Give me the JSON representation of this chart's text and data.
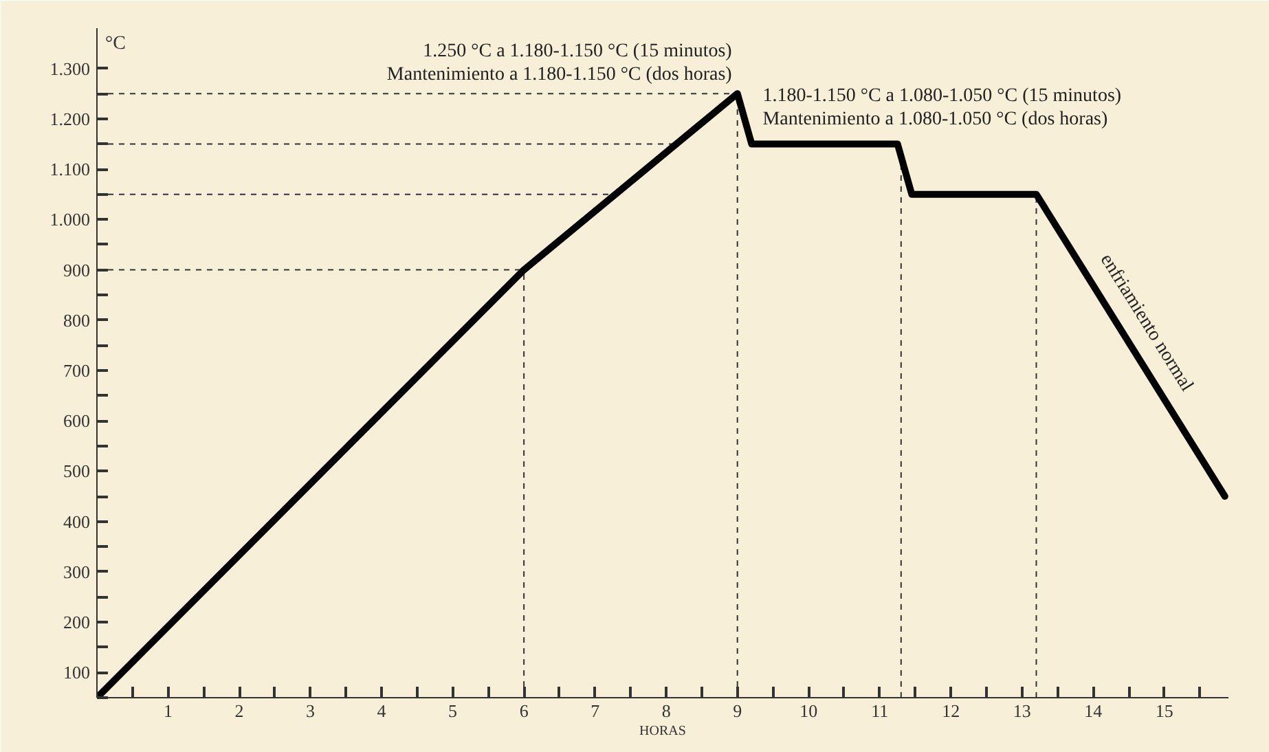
{
  "chart_data": {
    "type": "line",
    "xlabel": "HORAS",
    "ylabel": "°C",
    "x": [
      0,
      6,
      9,
      9.2,
      11.25,
      11.45,
      13.2,
      15.85
    ],
    "series": [
      {
        "color": "#000000",
        "values": [
          50,
          900,
          1250,
          1150,
          1150,
          1050,
          1050,
          450
        ]
      }
    ],
    "xlim": [
      0,
      15.9
    ],
    "ylim": [
      50,
      1380
    ],
    "xticks": [
      1,
      2,
      3,
      4,
      5,
      6,
      7,
      8,
      9,
      10,
      11,
      12,
      13,
      14,
      15
    ],
    "yticks": [
      {
        "value": 100,
        "label": "100"
      },
      {
        "value": 200,
        "label": "200"
      },
      {
        "value": 300,
        "label": "300"
      },
      {
        "value": 400,
        "label": "400"
      },
      {
        "value": 500,
        "label": "500"
      },
      {
        "value": 600,
        "label": "600"
      },
      {
        "value": 700,
        "label": "700"
      },
      {
        "value": 800,
        "label": "800"
      },
      {
        "value": 900,
        "label": "900"
      },
      {
        "value": 1000,
        "label": "1.000"
      },
      {
        "value": 1100,
        "label": "1.100"
      },
      {
        "value": 1200,
        "label": "1.200"
      },
      {
        "value": 1300,
        "label": "1.300"
      }
    ],
    "ref_lines": [
      {
        "axis": "y",
        "value": 900,
        "line_style": "dashed",
        "color": "#333333"
      },
      {
        "axis": "y",
        "value": 1050,
        "line_style": "dashed",
        "color": "#333333"
      },
      {
        "axis": "y",
        "value": 1150,
        "line_style": "dashed",
        "color": "#333333"
      },
      {
        "axis": "y",
        "value": 1250,
        "line_style": "dashed",
        "color": "#333333"
      },
      {
        "axis": "x",
        "value": 6,
        "line_style": "dashed",
        "color": "#333333"
      },
      {
        "axis": "x",
        "value": 9,
        "line_style": "dashed",
        "color": "#333333"
      },
      {
        "axis": "x",
        "value": 11.3,
        "line_style": "dashed",
        "color": "#333333"
      },
      {
        "axis": "x",
        "value": 13.2,
        "line_style": "dashed",
        "color": "#333333"
      }
    ],
    "annotations": [
      {
        "text": "1.250 °C a 1.180-1.150 °C (15 minutos)\nMantenimiento a 1.180-1.150 °C (dos horas)",
        "x": 9,
        "y": 1250
      },
      {
        "text": "1.180-1.150 °C a 1.080-1.050 °C (15 minutos)\nMantenimiento a 1.080-1.050 °C (dos horas)",
        "x": 9.2,
        "y": 1150
      },
      {
        "text": "enfriamiento normal",
        "x": 14.35,
        "y": 800
      }
    ],
    "grid": false,
    "marker": "none",
    "line_style": "solid"
  }
}
